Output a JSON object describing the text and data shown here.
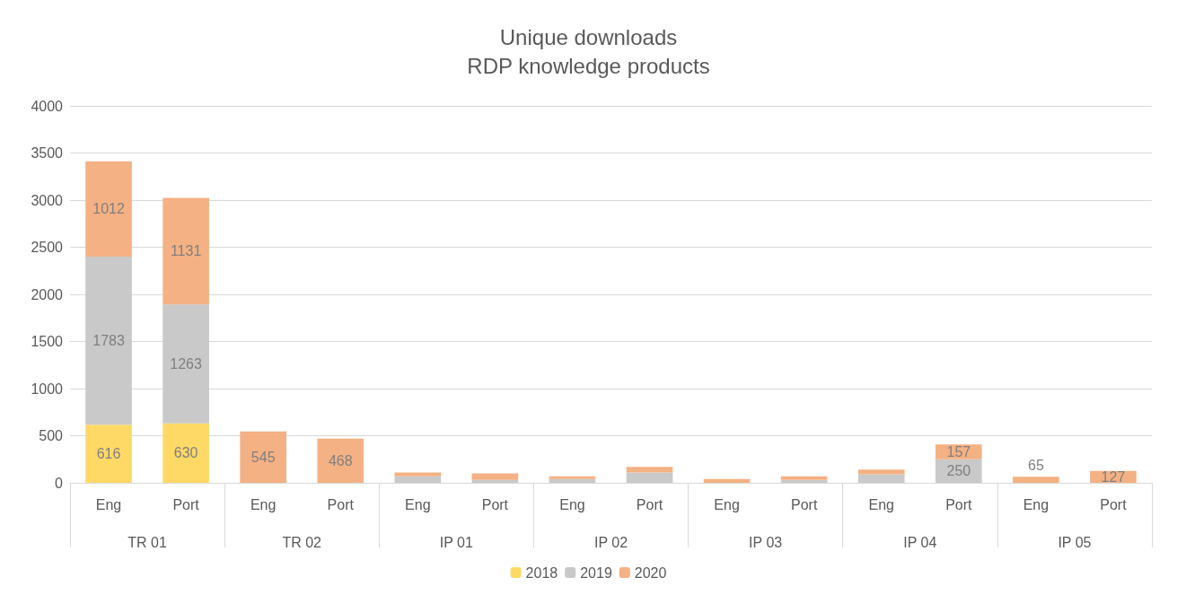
{
  "chart_data": {
    "type": "bar",
    "title": "Unique downloads",
    "subtitle": "RDP knowledge products",
    "categories": [
      "Eng",
      "Port",
      "Eng",
      "Port",
      "Eng",
      "Port",
      "Eng",
      "Port",
      "Eng",
      "Port",
      "Eng",
      "Port",
      "Eng",
      "Port"
    ],
    "annotations": [
      "TR 01",
      "TR 02",
      "IP 01",
      "IP 02",
      "IP 03",
      "IP 04",
      "IP 05"
    ],
    "stacked": true,
    "series": [
      {
        "name": "2018",
        "color": "#ffd966",
        "values": [
          616,
          630,
          null,
          null,
          null,
          null,
          null,
          null,
          null,
          null,
          null,
          null,
          null,
          null
        ],
        "value_labels": [
          "616",
          "630",
          null,
          null,
          null,
          null,
          null,
          null,
          null,
          null,
          null,
          null,
          null,
          null
        ]
      },
      {
        "name": "2019",
        "color": "#c9c9c9",
        "values": [
          1783,
          1263,
          null,
          null,
          70,
          30,
          40,
          110,
          null,
          30,
          90,
          250,
          null,
          null
        ],
        "value_labels": [
          "1783",
          "1263",
          null,
          null,
          null,
          null,
          null,
          null,
          null,
          null,
          null,
          "250",
          null,
          null
        ]
      },
      {
        "name": "2020",
        "color": "#f4b183",
        "values": [
          1012,
          1131,
          545,
          468,
          40,
          70,
          30,
          60,
          40,
          40,
          50,
          157,
          65,
          127
        ],
        "value_labels": [
          "1012",
          "1131",
          "545",
          "468",
          null,
          null,
          null,
          null,
          null,
          null,
          null,
          "157",
          "65",
          "127"
        ]
      }
    ],
    "ylim": [
      0,
      4000
    ],
    "yticks": [
      0,
      500,
      1000,
      1500,
      2000,
      2500,
      3000,
      3500,
      4000
    ],
    "grid": "y",
    "legend": "bottom"
  }
}
